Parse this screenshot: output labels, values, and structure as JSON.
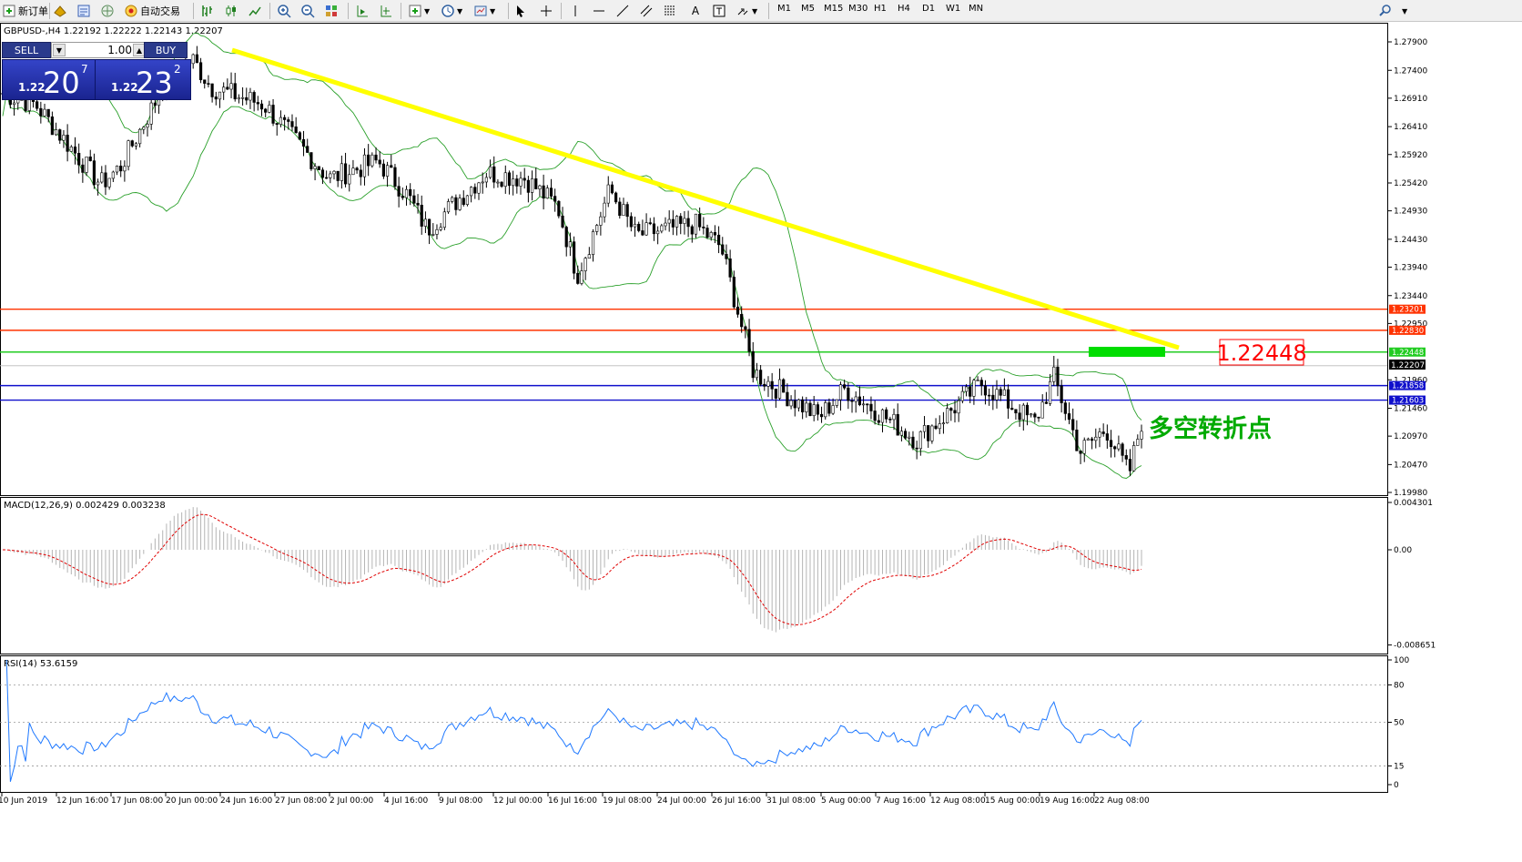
{
  "toolbar": {
    "new_order": "新订单",
    "auto_trading": "自动交易",
    "timeframes": [
      "M1",
      "M5",
      "M15",
      "M30",
      "H1",
      "H4",
      "D1",
      "W1",
      "MN"
    ]
  },
  "chart": {
    "title": "GBPUSD-,H4  1.22192 1.22222 1.22143 1.22207",
    "price_axis": [
      "1.27900",
      "1.27400",
      "1.26910",
      "1.26410",
      "1.25920",
      "1.25420",
      "1.24930",
      "1.24430",
      "1.23940",
      "1.23440",
      "1.22950",
      "1.21960",
      "1.21460",
      "1.20970",
      "1.20470",
      "1.19980"
    ],
    "horizontal_lines": [
      {
        "label": "1.23201",
        "price": 1.23201,
        "color": "#ff3300"
      },
      {
        "label": "1.22830",
        "price": 1.2283,
        "color": "#ff3300"
      },
      {
        "label": "1.22448",
        "price": 1.22448,
        "color": "#22cc22"
      },
      {
        "label": "1.21858",
        "price": 1.21858,
        "color": "#1010cc"
      },
      {
        "label": "1.21603",
        "price": 1.21603,
        "color": "#1010cc"
      }
    ],
    "current_price_label": "1.22207",
    "big_price_annotation": "1.22448",
    "cn_annotation": "多空转折点",
    "trend_line_color": "#ffff00"
  },
  "trade_panel": {
    "sell_label": "SELL",
    "buy_label": "BUY",
    "lot_value": "1.00",
    "sell_price_small": "1.22",
    "sell_price_big": "20",
    "sell_price_sup": "7",
    "buy_price_small": "1.22",
    "buy_price_big": "23",
    "buy_price_sup": "2"
  },
  "macd": {
    "title": "MACD(12,26,9) 0.002429 0.003238",
    "axis": [
      "0.004301",
      "0.00",
      "-0.008651"
    ]
  },
  "rsi": {
    "title": "RSI(14) 53.6159",
    "axis": [
      "100",
      "80",
      "50",
      "15",
      "0"
    ]
  },
  "time_axis": [
    "10 Jun 2019",
    "12 Jun 16:00",
    "17 Jun 08:00",
    "20 Jun 00:00",
    "24 Jun 16:00",
    "27 Jun 08:00",
    "2 Jul 00:00",
    "4 Jul 16:00",
    "9 Jul 08:00",
    "12 Jul 00:00",
    "16 Jul 16:00",
    "19 Jul 08:00",
    "24 Jul 00:00",
    "26 Jul 16:00",
    "31 Jul 08:00",
    "5 Aug 00:00",
    "7 Aug 16:00",
    "12 Aug 08:00",
    "15 Aug 00:00",
    "19 Aug 16:00",
    "22 Aug 08:00"
  ]
}
